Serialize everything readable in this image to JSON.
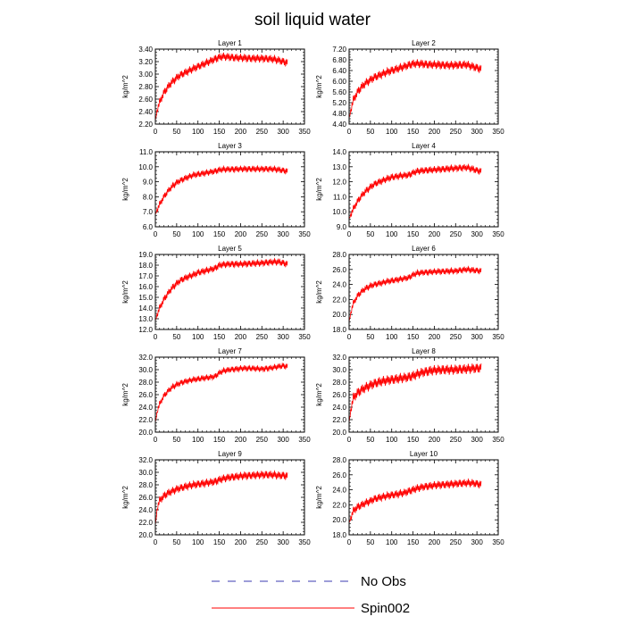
{
  "figure": {
    "title": "soil liquid water",
    "legend": [
      {
        "label": "No Obs",
        "color": "#3b3bb0",
        "style": "dashed"
      },
      {
        "label": "Spin002",
        "color": "#ff0000",
        "style": "solid"
      }
    ]
  },
  "chart_data": [
    {
      "type": "line",
      "title": "Layer 1",
      "xlabel": "",
      "ylabel": "kg/m^2",
      "xlim": [
        0,
        350
      ],
      "ylim": [
        2.2,
        3.4
      ],
      "xticks": [
        0,
        50,
        100,
        150,
        200,
        250,
        300,
        350
      ],
      "yticks": [
        2.2,
        2.4,
        2.6,
        2.8,
        3.0,
        3.2,
        3.4
      ],
      "ytick_decimals": 2,
      "series": [
        {
          "name": "Spin002",
          "color": "#ff0000",
          "x": [
            0,
            5,
            10,
            20,
            30,
            40,
            50,
            60,
            75,
            90,
            100,
            110,
            120,
            130,
            140,
            150,
            160,
            175,
            190,
            200,
            225,
            250,
            275,
            290,
            300,
            310
          ],
          "y": [
            2.25,
            2.45,
            2.55,
            2.7,
            2.8,
            2.88,
            2.94,
            2.99,
            3.04,
            3.09,
            3.12,
            3.15,
            3.18,
            3.21,
            3.24,
            3.27,
            3.28,
            3.27,
            3.26,
            3.26,
            3.25,
            3.25,
            3.24,
            3.22,
            3.2,
            3.18
          ],
          "amplitude": 0.06
        }
      ]
    },
    {
      "type": "line",
      "title": "Layer 2",
      "xlabel": "",
      "ylabel": "kg/m^2",
      "xlim": [
        0,
        350
      ],
      "ylim": [
        4.4,
        7.2
      ],
      "xticks": [
        0,
        50,
        100,
        150,
        200,
        250,
        300,
        350
      ],
      "yticks": [
        4.4,
        4.8,
        5.2,
        5.6,
        6.0,
        6.4,
        6.8,
        7.2
      ],
      "ytick_decimals": 2,
      "series": [
        {
          "name": "Spin002",
          "color": "#ff0000",
          "x": [
            0,
            5,
            10,
            20,
            30,
            40,
            50,
            60,
            75,
            90,
            100,
            110,
            120,
            130,
            140,
            150,
            160,
            175,
            190,
            200,
            225,
            250,
            275,
            290,
            300,
            310
          ],
          "y": [
            4.6,
            5.0,
            5.3,
            5.6,
            5.8,
            5.95,
            6.05,
            6.15,
            6.25,
            6.35,
            6.4,
            6.45,
            6.5,
            6.55,
            6.6,
            6.65,
            6.66,
            6.64,
            6.62,
            6.62,
            6.6,
            6.6,
            6.62,
            6.55,
            6.5,
            6.45
          ],
          "amplitude": 0.15
        }
      ]
    },
    {
      "type": "line",
      "title": "Layer 3",
      "xlabel": "",
      "ylabel": "kg/m^2",
      "xlim": [
        0,
        350
      ],
      "ylim": [
        6.0,
        11.0
      ],
      "xticks": [
        0,
        50,
        100,
        150,
        200,
        250,
        300,
        350
      ],
      "yticks": [
        6.0,
        7.0,
        8.0,
        9.0,
        10.0,
        11.0
      ],
      "ytick_decimals": 1,
      "series": [
        {
          "name": "Spin002",
          "color": "#ff0000",
          "x": [
            0,
            5,
            10,
            20,
            30,
            40,
            50,
            60,
            75,
            90,
            100,
            110,
            120,
            130,
            140,
            150,
            160,
            175,
            190,
            200,
            225,
            250,
            275,
            290,
            300,
            310
          ],
          "y": [
            6.8,
            7.2,
            7.5,
            8.0,
            8.4,
            8.7,
            8.95,
            9.1,
            9.3,
            9.45,
            9.5,
            9.55,
            9.6,
            9.65,
            9.7,
            9.8,
            9.82,
            9.83,
            9.84,
            9.85,
            9.85,
            9.85,
            9.85,
            9.8,
            9.75,
            9.7
          ],
          "amplitude": 0.2
        }
      ]
    },
    {
      "type": "line",
      "title": "Layer 4",
      "xlabel": "",
      "ylabel": "kg/m^2",
      "xlim": [
        0,
        350
      ],
      "ylim": [
        9.0,
        14.0
      ],
      "xticks": [
        0,
        50,
        100,
        150,
        200,
        250,
        300,
        350
      ],
      "yticks": [
        9.0,
        10.0,
        11.0,
        12.0,
        13.0,
        14.0
      ],
      "ytick_decimals": 1,
      "series": [
        {
          "name": "Spin002",
          "color": "#ff0000",
          "x": [
            0,
            5,
            10,
            20,
            30,
            40,
            50,
            60,
            75,
            90,
            100,
            110,
            120,
            130,
            140,
            150,
            160,
            175,
            190,
            200,
            225,
            250,
            275,
            290,
            300,
            310
          ],
          "y": [
            9.5,
            9.9,
            10.2,
            10.7,
            11.1,
            11.4,
            11.65,
            11.85,
            12.05,
            12.2,
            12.3,
            12.35,
            12.4,
            12.42,
            12.45,
            12.6,
            12.7,
            12.75,
            12.78,
            12.8,
            12.85,
            12.9,
            12.95,
            12.85,
            12.75,
            12.7
          ],
          "amplitude": 0.22
        }
      ]
    },
    {
      "type": "line",
      "title": "Layer 5",
      "xlabel": "",
      "ylabel": "kg/m^2",
      "xlim": [
        0,
        350
      ],
      "ylim": [
        12.0,
        19.0
      ],
      "xticks": [
        0,
        50,
        100,
        150,
        200,
        250,
        300,
        350
      ],
      "yticks": [
        12.0,
        13.0,
        14.0,
        15.0,
        16.0,
        17.0,
        18.0,
        19.0
      ],
      "ytick_decimals": 1,
      "series": [
        {
          "name": "Spin002",
          "color": "#ff0000",
          "x": [
            0,
            5,
            10,
            20,
            30,
            40,
            50,
            60,
            75,
            90,
            100,
            110,
            120,
            130,
            140,
            150,
            160,
            175,
            190,
            200,
            225,
            250,
            275,
            290,
            300,
            310
          ],
          "y": [
            12.8,
            13.5,
            14.0,
            14.8,
            15.4,
            15.9,
            16.3,
            16.6,
            16.9,
            17.1,
            17.3,
            17.4,
            17.5,
            17.6,
            17.7,
            18.0,
            18.05,
            18.1,
            18.1,
            18.1,
            18.15,
            18.2,
            18.3,
            18.3,
            18.2,
            18.1
          ],
          "amplitude": 0.3
        }
      ]
    },
    {
      "type": "line",
      "title": "Layer 6",
      "xlabel": "",
      "ylabel": "kg/m^2",
      "xlim": [
        0,
        350
      ],
      "ylim": [
        18.0,
        28.0
      ],
      "xticks": [
        0,
        50,
        100,
        150,
        200,
        250,
        300,
        350
      ],
      "yticks": [
        18.0,
        20.0,
        22.0,
        24.0,
        26.0,
        28.0
      ],
      "ytick_decimals": 1,
      "series": [
        {
          "name": "Spin002",
          "color": "#ff0000",
          "x": [
            0,
            5,
            10,
            20,
            30,
            40,
            50,
            60,
            75,
            90,
            100,
            110,
            120,
            130,
            140,
            150,
            160,
            175,
            190,
            200,
            225,
            250,
            275,
            290,
            300,
            310
          ],
          "y": [
            19.0,
            20.5,
            21.5,
            22.5,
            23.1,
            23.5,
            23.8,
            24.0,
            24.2,
            24.4,
            24.5,
            24.6,
            24.7,
            24.8,
            24.9,
            25.3,
            25.5,
            25.6,
            25.65,
            25.7,
            25.75,
            25.8,
            26.0,
            25.9,
            25.85,
            25.8
          ],
          "amplitude": 0.4
        }
      ]
    },
    {
      "type": "line",
      "title": "Layer 7",
      "xlabel": "",
      "ylabel": "kg/m^2",
      "xlim": [
        0,
        350
      ],
      "ylim": [
        20.0,
        32.0
      ],
      "xticks": [
        0,
        50,
        100,
        150,
        200,
        250,
        300,
        350
      ],
      "yticks": [
        20.0,
        22.0,
        24.0,
        26.0,
        28.0,
        30.0,
        32.0
      ],
      "ytick_decimals": 1,
      "series": [
        {
          "name": "Spin002",
          "color": "#ff0000",
          "x": [
            0,
            5,
            10,
            20,
            30,
            40,
            50,
            60,
            75,
            90,
            100,
            110,
            120,
            130,
            140,
            150,
            160,
            175,
            190,
            200,
            225,
            250,
            275,
            290,
            300,
            310
          ],
          "y": [
            21.5,
            23.5,
            24.5,
            25.8,
            26.6,
            27.2,
            27.6,
            27.9,
            28.2,
            28.4,
            28.5,
            28.6,
            28.7,
            28.8,
            28.9,
            29.5,
            29.8,
            30.0,
            30.1,
            30.2,
            30.2,
            30.1,
            30.3,
            30.5,
            30.6,
            30.5
          ],
          "amplitude": 0.45
        }
      ]
    },
    {
      "type": "line",
      "title": "Layer 8",
      "xlabel": "",
      "ylabel": "kg/m^2",
      "xlim": [
        0,
        350
      ],
      "ylim": [
        20.0,
        32.0
      ],
      "xticks": [
        0,
        50,
        100,
        150,
        200,
        250,
        300,
        350
      ],
      "yticks": [
        20.0,
        22.0,
        24.0,
        26.0,
        28.0,
        30.0,
        32.0
      ],
      "ytick_decimals": 1,
      "series": [
        {
          "name": "Spin002",
          "color": "#ff0000",
          "x": [
            0,
            5,
            10,
            20,
            30,
            40,
            50,
            60,
            75,
            90,
            100,
            110,
            120,
            130,
            140,
            150,
            160,
            175,
            190,
            200,
            225,
            250,
            275,
            290,
            300,
            310
          ],
          "y": [
            21.5,
            24.0,
            25.5,
            26.3,
            26.8,
            27.2,
            27.5,
            27.8,
            28.1,
            28.3,
            28.4,
            28.5,
            28.6,
            28.7,
            28.8,
            29.0,
            29.3,
            29.6,
            29.8,
            29.9,
            30.0,
            30.0,
            30.1,
            30.2,
            30.2,
            30.3
          ],
          "amplitude": 0.75
        }
      ]
    },
    {
      "type": "line",
      "title": "Layer 9",
      "xlabel": "",
      "ylabel": "kg/m^2",
      "xlim": [
        0,
        350
      ],
      "ylim": [
        20.0,
        32.0
      ],
      "xticks": [
        0,
        50,
        100,
        150,
        200,
        250,
        300,
        350
      ],
      "yticks": [
        20.0,
        22.0,
        24.0,
        26.0,
        28.0,
        30.0,
        32.0
      ],
      "ytick_decimals": 1,
      "series": [
        {
          "name": "Spin002",
          "color": "#ff0000",
          "x": [
            0,
            5,
            10,
            20,
            30,
            40,
            50,
            60,
            75,
            90,
            100,
            110,
            120,
            130,
            140,
            150,
            160,
            175,
            190,
            200,
            225,
            250,
            275,
            290,
            300,
            310
          ],
          "y": [
            21.5,
            24.5,
            25.5,
            26.2,
            26.7,
            27.0,
            27.3,
            27.5,
            27.8,
            28.0,
            28.1,
            28.2,
            28.3,
            28.4,
            28.5,
            28.8,
            29.0,
            29.2,
            29.3,
            29.4,
            29.5,
            29.6,
            29.6,
            29.5,
            29.5,
            29.4
          ],
          "amplitude": 0.6
        }
      ]
    },
    {
      "type": "line",
      "title": "Layer 10",
      "xlabel": "",
      "ylabel": "kg/m^2",
      "xlim": [
        0,
        350
      ],
      "ylim": [
        18.0,
        28.0
      ],
      "xticks": [
        0,
        50,
        100,
        150,
        200,
        250,
        300,
        350
      ],
      "yticks": [
        18.0,
        20.0,
        22.0,
        24.0,
        26.0,
        28.0
      ],
      "ytick_decimals": 1,
      "series": [
        {
          "name": "Spin002",
          "color": "#ff0000",
          "x": [
            0,
            5,
            10,
            20,
            30,
            40,
            50,
            60,
            75,
            90,
            100,
            110,
            120,
            130,
            140,
            150,
            160,
            175,
            190,
            200,
            225,
            250,
            275,
            290,
            300,
            310
          ],
          "y": [
            19.5,
            20.5,
            21.2,
            21.7,
            22.0,
            22.3,
            22.5,
            22.8,
            23.0,
            23.2,
            23.3,
            23.4,
            23.5,
            23.6,
            23.8,
            24.0,
            24.2,
            24.4,
            24.5,
            24.6,
            24.7,
            24.8,
            24.9,
            24.9,
            24.8,
            24.7
          ],
          "amplitude": 0.5
        }
      ]
    }
  ]
}
